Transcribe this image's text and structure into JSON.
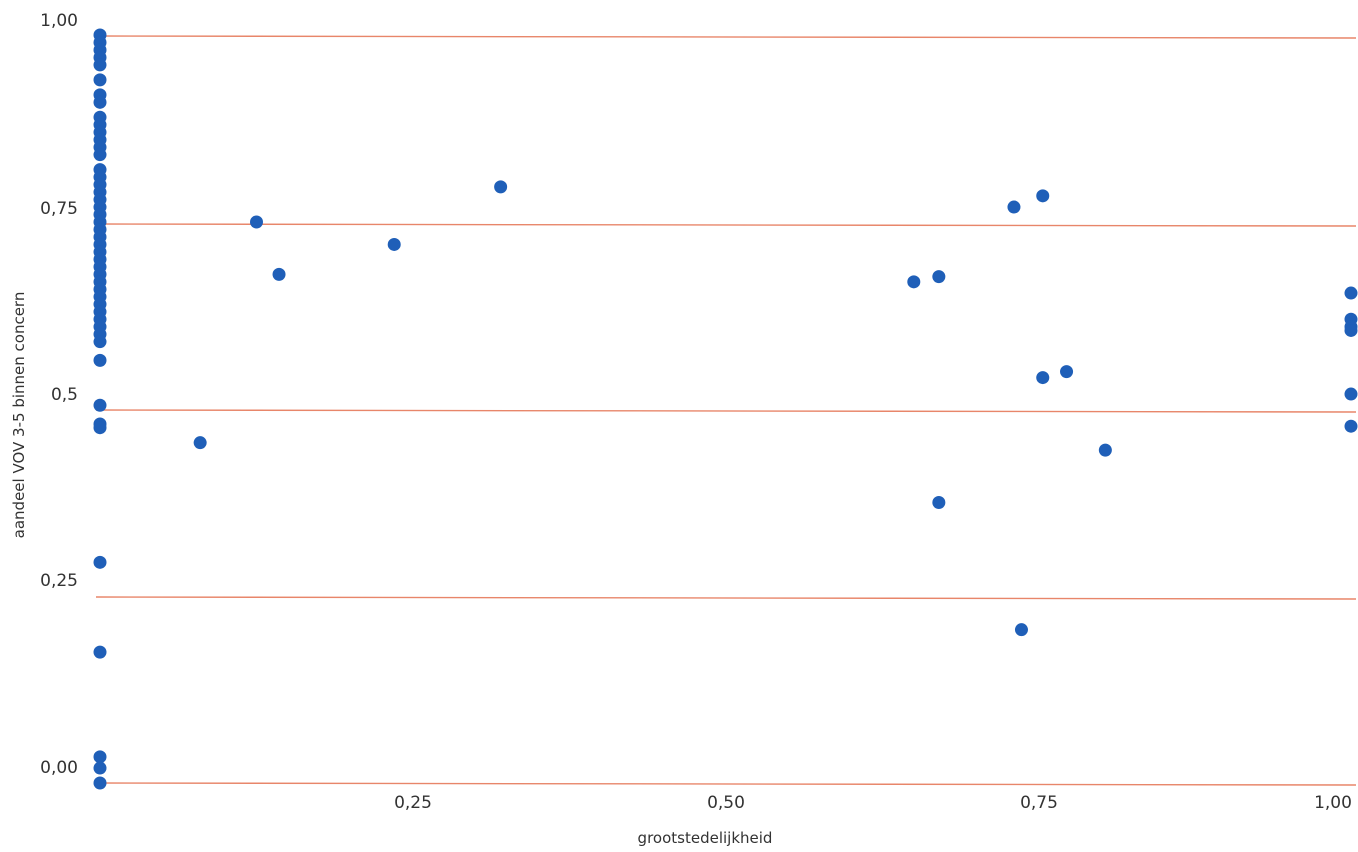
{
  "chart_data": {
    "type": "scatter",
    "title": "",
    "xlabel": "grootstedelijkheid",
    "ylabel": "aandeel VOV 3-5 binnen concern",
    "xlim": [
      0.0,
      1.0
    ],
    "ylim": [
      -0.02,
      1.0
    ],
    "x_ticks": [
      {
        "value": 0.25,
        "label": "0,25"
      },
      {
        "value": 0.5,
        "label": "0,50"
      },
      {
        "value": 0.75,
        "label": "0,75"
      },
      {
        "value": 1.0,
        "label": "1,00"
      }
    ],
    "y_ticks": [
      {
        "value": 0.0,
        "label": "0,00"
      },
      {
        "value": 0.25,
        "label": "0,25"
      },
      {
        "value": 0.5,
        "label": "0,5"
      },
      {
        "value": 0.75,
        "label": "0,75"
      },
      {
        "value": 1.0,
        "label": "1,00"
      }
    ],
    "grid": {
      "horizontal": true,
      "vertical": false,
      "color": "#e8866a"
    },
    "point_color": "#1f5fb8",
    "series": [
      {
        "points": [
          {
            "x": 0.0,
            "y": 0.98
          },
          {
            "x": 0.0,
            "y": 0.97
          },
          {
            "x": 0.0,
            "y": 0.96
          },
          {
            "x": 0.0,
            "y": 0.95
          },
          {
            "x": 0.0,
            "y": 0.94
          },
          {
            "x": 0.0,
            "y": 0.92
          },
          {
            "x": 0.0,
            "y": 0.9
          },
          {
            "x": 0.0,
            "y": 0.89
          },
          {
            "x": 0.0,
            "y": 0.87
          },
          {
            "x": 0.0,
            "y": 0.86
          },
          {
            "x": 0.0,
            "y": 0.85
          },
          {
            "x": 0.0,
            "y": 0.84
          },
          {
            "x": 0.0,
            "y": 0.83
          },
          {
            "x": 0.0,
            "y": 0.82
          },
          {
            "x": 0.0,
            "y": 0.8
          },
          {
            "x": 0.0,
            "y": 0.79
          },
          {
            "x": 0.0,
            "y": 0.78
          },
          {
            "x": 0.0,
            "y": 0.77
          },
          {
            "x": 0.0,
            "y": 0.76
          },
          {
            "x": 0.0,
            "y": 0.75
          },
          {
            "x": 0.0,
            "y": 0.74
          },
          {
            "x": 0.0,
            "y": 0.73
          },
          {
            "x": 0.0,
            "y": 0.72
          },
          {
            "x": 0.0,
            "y": 0.71
          },
          {
            "x": 0.0,
            "y": 0.7
          },
          {
            "x": 0.0,
            "y": 0.69
          },
          {
            "x": 0.0,
            "y": 0.68
          },
          {
            "x": 0.0,
            "y": 0.67
          },
          {
            "x": 0.0,
            "y": 0.66
          },
          {
            "x": 0.0,
            "y": 0.65
          },
          {
            "x": 0.0,
            "y": 0.64
          },
          {
            "x": 0.0,
            "y": 0.63
          },
          {
            "x": 0.0,
            "y": 0.62
          },
          {
            "x": 0.0,
            "y": 0.61
          },
          {
            "x": 0.0,
            "y": 0.6
          },
          {
            "x": 0.0,
            "y": 0.59
          },
          {
            "x": 0.0,
            "y": 0.58
          },
          {
            "x": 0.0,
            "y": 0.57
          },
          {
            "x": 0.0,
            "y": 0.545
          },
          {
            "x": 0.0,
            "y": 0.485
          },
          {
            "x": 0.0,
            "y": 0.46
          },
          {
            "x": 0.0,
            "y": 0.455
          },
          {
            "x": 0.0,
            "y": 0.275
          },
          {
            "x": 0.0,
            "y": 0.155
          },
          {
            "x": 0.0,
            "y": 0.015
          },
          {
            "x": 0.0,
            "y": 0.0
          },
          {
            "x": 0.0,
            "y": -0.02
          },
          {
            "x": 0.08,
            "y": 0.435
          },
          {
            "x": 0.125,
            "y": 0.73
          },
          {
            "x": 0.143,
            "y": 0.66
          },
          {
            "x": 0.235,
            "y": 0.7
          },
          {
            "x": 0.32,
            "y": 0.777
          },
          {
            "x": 0.65,
            "y": 0.65
          },
          {
            "x": 0.67,
            "y": 0.657
          },
          {
            "x": 0.67,
            "y": 0.355
          },
          {
            "x": 0.73,
            "y": 0.75
          },
          {
            "x": 0.736,
            "y": 0.185
          },
          {
            "x": 0.753,
            "y": 0.765
          },
          {
            "x": 0.753,
            "y": 0.522
          },
          {
            "x": 0.772,
            "y": 0.53
          },
          {
            "x": 0.803,
            "y": 0.425
          },
          {
            "x": 1.0,
            "y": 0.635
          },
          {
            "x": 1.0,
            "y": 0.6
          },
          {
            "x": 1.0,
            "y": 0.59
          },
          {
            "x": 1.0,
            "y": 0.585
          },
          {
            "x": 1.0,
            "y": 0.5
          },
          {
            "x": 1.0,
            "y": 0.457
          }
        ]
      }
    ]
  }
}
